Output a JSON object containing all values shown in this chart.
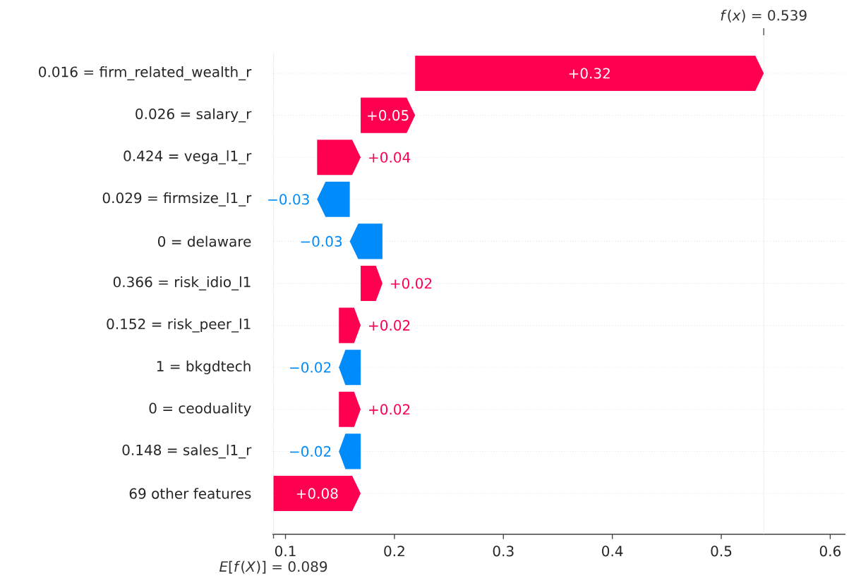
{
  "chart_data": {
    "type": "bar",
    "orientation": "horizontal",
    "categories": [
      "0.016 = firm_related_wealth_r",
      "0.026 = salary_r",
      "0.424 = vega_l1_r",
      "0.029 = firmsize_l1_r",
      "0 = delaware",
      "0.366 = risk_idio_l1",
      "0.152 = risk_peer_l1",
      "1 = bkgdtech",
      "0 = ceoduality",
      "0.148 = sales_l1_r",
      "69 other features"
    ],
    "values": [
      0.32,
      0.05,
      0.04,
      -0.03,
      -0.03,
      0.02,
      0.02,
      -0.02,
      0.02,
      -0.02,
      0.08
    ],
    "base": [
      0.219,
      0.169,
      0.129,
      0.159,
      0.189,
      0.169,
      0.149,
      0.169,
      0.149,
      0.169,
      0.089
    ],
    "colors": [
      "#ff0051",
      "#ff0051",
      "#ff0051",
      "#008bfb",
      "#008bfb",
      "#ff0051",
      "#ff0051",
      "#008bfb",
      "#ff0051",
      "#008bfb",
      "#ff0051"
    ],
    "value_labels": [
      "+0.32",
      "+0.05",
      "+0.04",
      "−0.03",
      "−0.03",
      "+0.02",
      "+0.02",
      "−0.02",
      "+0.02",
      "−0.02",
      "+0.08"
    ],
    "xlim": [
      0.088,
      0.614
    ],
    "xticks": [
      0.1,
      0.2,
      0.3,
      0.4,
      0.5,
      0.6
    ],
    "grid": "y",
    "ref_lines": [
      {
        "axis": "x",
        "value": 0.539,
        "label": "*f*(*x*) = 0.539"
      },
      {
        "axis": "x",
        "value": 0.089,
        "label": "*E*[*f*(*X*)] = 0.089"
      }
    ]
  }
}
